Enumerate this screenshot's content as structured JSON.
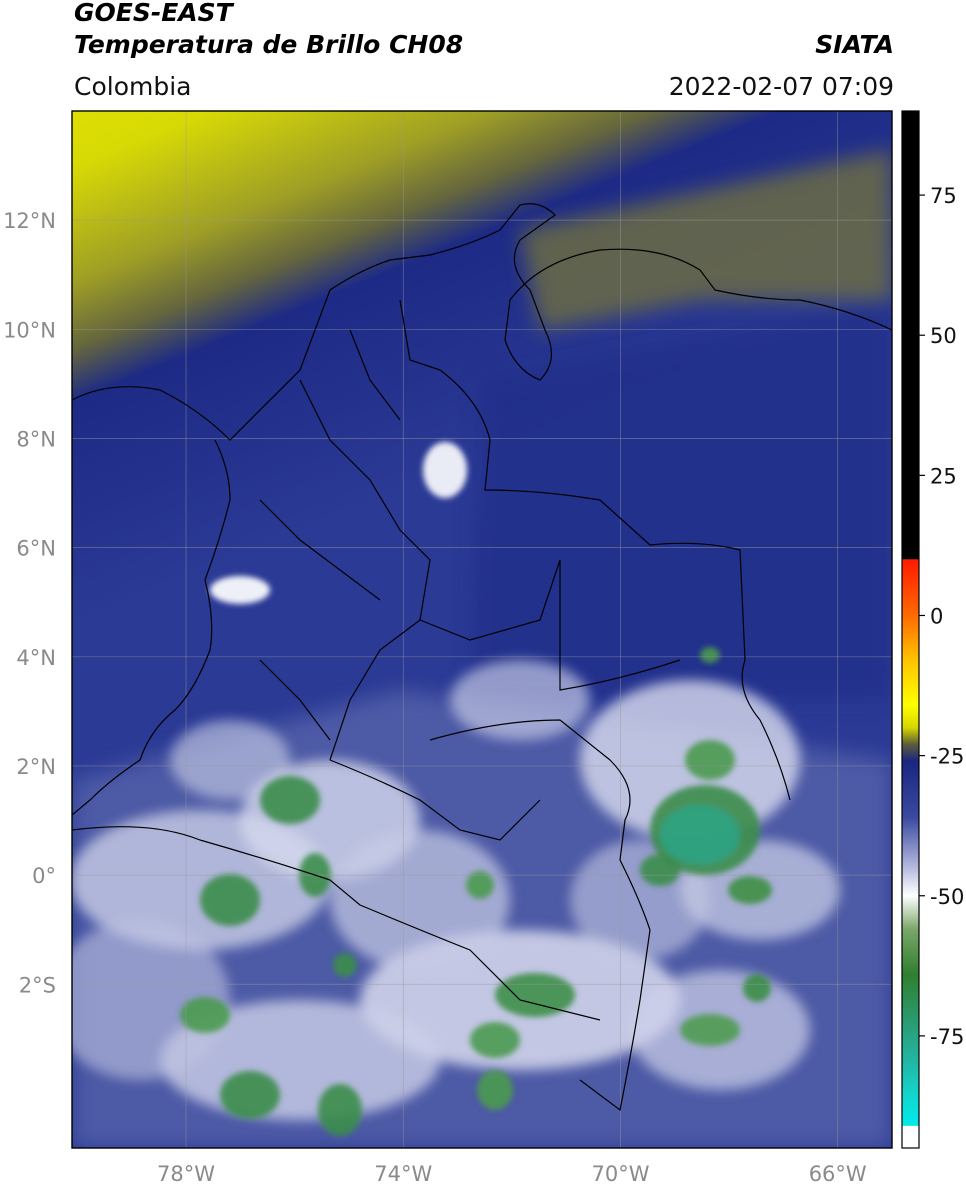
{
  "header": {
    "satellite": "GOES-EAST",
    "product": "Temperatura de Brillo CH08",
    "agency": "SIATA",
    "region": "Colombia",
    "datetime": "2022-02-07 07:09"
  },
  "map": {
    "lat_range": [
      -5.0,
      14.0
    ],
    "lon_range": [
      -80.1,
      -65.0
    ],
    "lat_ticks": [
      "12°N",
      "10°N",
      "8°N",
      "6°N",
      "4°N",
      "2°N",
      "0°",
      "2°S"
    ],
    "lon_ticks": [
      "78°W",
      "74°W",
      "70°W",
      "66°W"
    ],
    "grid": true
  },
  "colorbar": {
    "ticks": [
      "75",
      "50",
      "25",
      "0",
      "-25",
      "-50",
      "-75"
    ],
    "range": [
      -95,
      90
    ],
    "segments": [
      {
        "from": 10,
        "to": 90,
        "color": "#000000"
      },
      {
        "from": 0,
        "to": 8,
        "color": "#ff4400"
      },
      {
        "from": -10,
        "to": 0,
        "color": "#ffb000"
      },
      {
        "from": -20,
        "to": -10,
        "color": "#ffff00"
      },
      {
        "from": -25,
        "to": -20,
        "color": "#6b6b3a"
      },
      {
        "from": -40,
        "to": -25,
        "color": "#1c2a8a"
      },
      {
        "from": -55,
        "to": -40,
        "color": "#ffffff"
      },
      {
        "from": -70,
        "to": -55,
        "color": "#2e8a2e"
      },
      {
        "from": -85,
        "to": -70,
        "color": "#1fb3a0"
      },
      {
        "from": -91,
        "to": -85,
        "color": "#00e5e5"
      },
      {
        "from": -95,
        "to": -91,
        "color": "#ffffff"
      }
    ]
  },
  "colors": {
    "dry_yellow": "#e4e600",
    "olive": "#8c8c2a",
    "deep_blue": "#1d2a86",
    "mid_blue": "#3a4aa0",
    "light_blue": "#8e97c8",
    "white_cloud": "#f2f2f6",
    "green_cloud": "#3a8a3a",
    "teal_cloud": "#2aa88a"
  }
}
